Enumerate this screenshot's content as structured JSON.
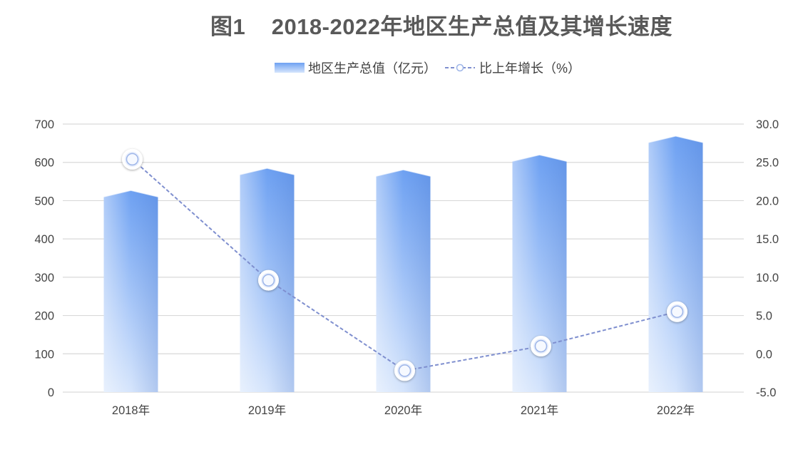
{
  "chart_data": {
    "type": "bar",
    "title": "图1    2018-2022年地区生产总值及其增长速度",
    "categories": [
      "2018年",
      "2019年",
      "2020年",
      "2021年",
      "2022年"
    ],
    "series": [
      {
        "name": "地区生产总值（亿元）",
        "type": "bar",
        "axis": "left",
        "values": [
          510,
          568,
          564,
          603,
          652
        ]
      },
      {
        "name": "比上年增长（%）",
        "type": "line",
        "axis": "right",
        "values": [
          25.4,
          9.6,
          -2.2,
          1.0,
          5.5
        ]
      }
    ],
    "y_left": {
      "min": 0,
      "max": 700,
      "ticks": [
        "0",
        "100",
        "200",
        "300",
        "400",
        "500",
        "600",
        "700"
      ]
    },
    "y_right": {
      "min": -5,
      "max": 30,
      "ticks": [
        "-5.0",
        "0.0",
        "5.0",
        "10.0",
        "15.0",
        "20.0",
        "25.0",
        "30.0"
      ]
    },
    "grid": true,
    "legend_position": "top-center",
    "colors": {
      "bar_top": "#6ea1f2",
      "bar_bottom": "#d3e3fb",
      "line": "#7f8fcf",
      "gridline": "#d9d9d9"
    }
  }
}
